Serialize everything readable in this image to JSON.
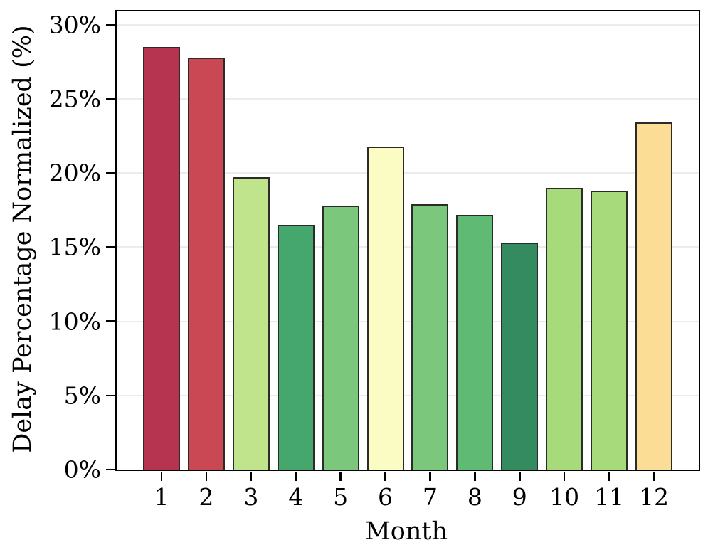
{
  "chart_data": {
    "type": "bar",
    "title": "",
    "xlabel": "Month",
    "ylabel": "Delay Percentage Normalized (%)",
    "categories": [
      "1",
      "2",
      "3",
      "4",
      "5",
      "6",
      "7",
      "8",
      "9",
      "10",
      "11",
      "12"
    ],
    "values": [
      28.5,
      27.8,
      19.7,
      16.5,
      17.8,
      21.8,
      17.9,
      17.2,
      15.3,
      19.0,
      18.8,
      23.4
    ],
    "bar_colors": [
      "#b63450",
      "#c94854",
      "#c0e48b",
      "#45a76d",
      "#7bc87d",
      "#fbfcc3",
      "#7bc87d",
      "#5fba74",
      "#348b5f",
      "#a6da7b",
      "#a6da7b",
      "#fbdd95"
    ],
    "bar_edge_color": "#2b2b2b",
    "ytick_values": [
      0,
      5,
      10,
      15,
      20,
      25,
      30
    ],
    "ytick_labels": [
      "0%",
      "5%",
      "10%",
      "15%",
      "20%",
      "25%",
      "30%"
    ],
    "ylim": [
      0,
      30.9
    ],
    "grid": "horizontal-major",
    "grid_color": "#ececec",
    "axis_color": "#000000",
    "background": "#ffffff",
    "legend": "none"
  }
}
